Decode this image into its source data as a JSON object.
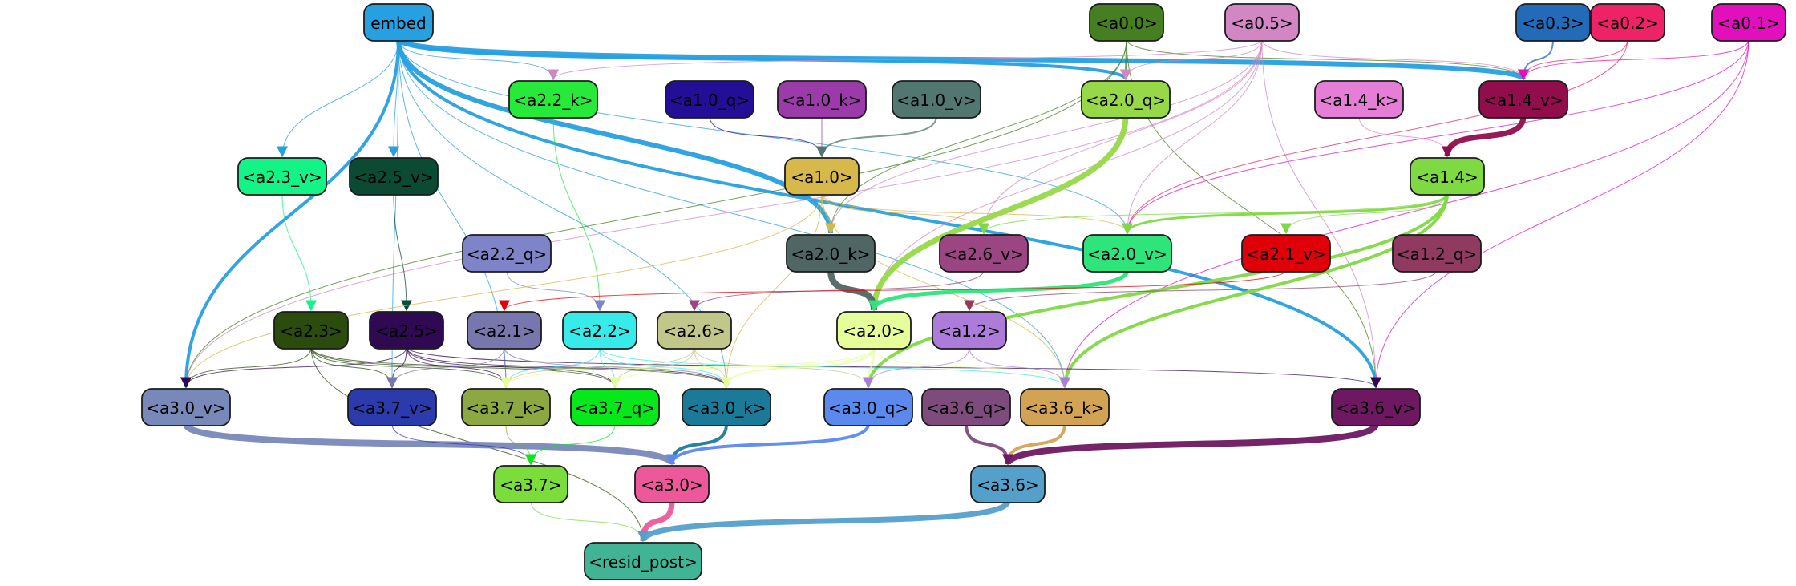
{
  "nodes": [
    {
      "id": "embed",
      "label": "embed",
      "fill": "#26a0e0",
      "text": "#000000"
    },
    {
      "id": "a0_0",
      "label": "<a0.0>",
      "fill": "#467f22",
      "text": "#000000"
    },
    {
      "id": "a0_5",
      "label": "<a0.5>",
      "fill": "#d286c4",
      "text": "#000000"
    },
    {
      "id": "a0_3",
      "label": "<a0.3>",
      "fill": "#236ab9",
      "text": "#000000"
    },
    {
      "id": "a0_2",
      "label": "<a0.2>",
      "fill": "#ee2267",
      "text": "#000000"
    },
    {
      "id": "a0_1",
      "label": "<a0.1>",
      "fill": "#e10fbc",
      "text": "#000000"
    },
    {
      "id": "a2_2_k",
      "label": "<a2.2_k>",
      "fill": "#27e93a",
      "text": "#000000"
    },
    {
      "id": "a1_0_q",
      "label": "<a1.0_q>",
      "fill": "#230f97",
      "text": "#000000"
    },
    {
      "id": "a1_0_k",
      "label": "<a1.0_k>",
      "fill": "#9b3aa9",
      "text": "#000000"
    },
    {
      "id": "a1_0_v",
      "label": "<a1.0_v>",
      "fill": "#527770",
      "text": "#000000"
    },
    {
      "id": "a2_0_q",
      "label": "<a2.0_q>",
      "fill": "#97d848",
      "text": "#000000"
    },
    {
      "id": "a1_4_k",
      "label": "<a1.4_k>",
      "fill": "#e47ed7",
      "text": "#000000"
    },
    {
      "id": "a1_4_v",
      "label": "<a1.4_v>",
      "fill": "#920d4c",
      "text": "#000000"
    },
    {
      "id": "a2_3_v",
      "label": "<a2.3_v>",
      "fill": "#14f386",
      "text": "#000000"
    },
    {
      "id": "a2_5_v",
      "label": "<a2.5_v>",
      "fill": "#0b4a33",
      "text": "#000000"
    },
    {
      "id": "a1_0",
      "label": "<a1.0>",
      "fill": "#d6b84b",
      "text": "#000000"
    },
    {
      "id": "a1_4",
      "label": "<a1.4>",
      "fill": "#7fd942",
      "text": "#000000"
    },
    {
      "id": "a2_2_q",
      "label": "<a2.2_q>",
      "fill": "#7f83c8",
      "text": "#000000"
    },
    {
      "id": "a2_0_k",
      "label": "<a2.0_k>",
      "fill": "#4f6664",
      "text": "#000000"
    },
    {
      "id": "a2_6_v",
      "label": "<a2.6_v>",
      "fill": "#9c4583",
      "text": "#000000"
    },
    {
      "id": "a2_0_v",
      "label": "<a2.0_v>",
      "fill": "#2de57a",
      "text": "#000000"
    },
    {
      "id": "a2_1_v",
      "label": "<a2.1_v>",
      "fill": "#e00007",
      "text": "#000000"
    },
    {
      "id": "a1_2_q",
      "label": "<a1.2_q>",
      "fill": "#903961",
      "text": "#000000"
    },
    {
      "id": "a2_3",
      "label": "<a2.3>",
      "fill": "#2b4c0c",
      "text": "#000000"
    },
    {
      "id": "a2_5",
      "label": "<a2.5>",
      "fill": "#2f0a53",
      "text": "#000000"
    },
    {
      "id": "a2_1",
      "label": "<a2.1>",
      "fill": "#7877ad",
      "text": "#000000"
    },
    {
      "id": "a2_2",
      "label": "<a2.2>",
      "fill": "#36ebea",
      "text": "#000000"
    },
    {
      "id": "a2_6",
      "label": "<a2.6>",
      "fill": "#c0c788",
      "text": "#000000"
    },
    {
      "id": "a2_0",
      "label": "<a2.0>",
      "fill": "#e6fe9a",
      "text": "#000000"
    },
    {
      "id": "a1_2",
      "label": "<a1.2>",
      "fill": "#ad7cda",
      "text": "#000000"
    },
    {
      "id": "a3_0_v",
      "label": "<a3.0_v>",
      "fill": "#7888b9",
      "text": "#000000"
    },
    {
      "id": "a3_7_v",
      "label": "<a3.7_v>",
      "fill": "#2b3bab",
      "text": "#000000"
    },
    {
      "id": "a3_7_k",
      "label": "<a3.7_k>",
      "fill": "#8ba843",
      "text": "#000000"
    },
    {
      "id": "a3_7_q",
      "label": "<a3.7_q>",
      "fill": "#06e81a",
      "text": "#000000"
    },
    {
      "id": "a3_0_k",
      "label": "<a3.0_k>",
      "fill": "#1c7a99",
      "text": "#000000"
    },
    {
      "id": "a3_0_q",
      "label": "<a3.0_q>",
      "fill": "#5b89ee",
      "text": "#000000"
    },
    {
      "id": "a3_6_q",
      "label": "<a3.6_q>",
      "fill": "#7e4b7d",
      "text": "#000000"
    },
    {
      "id": "a3_6_k",
      "label": "<a3.6_k>",
      "fill": "#d2a355",
      "text": "#000000"
    },
    {
      "id": "a3_6_v",
      "label": "<a3.6_v>",
      "fill": "#6e1862",
      "text": "#000000"
    },
    {
      "id": "a3_7",
      "label": "<a3.7>",
      "fill": "#7add3c",
      "text": "#000000"
    },
    {
      "id": "a3_0",
      "label": "<a3.0>",
      "fill": "#ec5899",
      "text": "#000000"
    },
    {
      "id": "a3_6",
      "label": "<a3.6>",
      "fill": "#54a0cb",
      "text": "#000000"
    },
    {
      "id": "resid_post",
      "label": "<resid_post>",
      "fill": "#40b494",
      "text": "#000000"
    }
  ],
  "edges": [
    {
      "from": "embed",
      "to": "a1_4_v",
      "color": "#26a0e0",
      "weight": 6
    },
    {
      "from": "embed",
      "to": "a2_0_k",
      "color": "#26a0e0",
      "weight": 6
    },
    {
      "from": "embed",
      "to": "a2_0_q",
      "color": "#26a0e0",
      "weight": 4
    },
    {
      "from": "embed",
      "to": "a3_0_v",
      "color": "#26a0e0",
      "weight": 4
    },
    {
      "from": "embed",
      "to": "a3_6_v",
      "color": "#26a0e0",
      "weight": 4
    },
    {
      "from": "embed",
      "to": "a2_2_k",
      "color": "#26a0e0",
      "weight": 1
    },
    {
      "from": "embed",
      "to": "a2_3_v",
      "color": "#26a0e0",
      "weight": 1
    },
    {
      "from": "embed",
      "to": "a2_5_v",
      "color": "#26a0e0",
      "weight": 1
    },
    {
      "from": "embed",
      "to": "a2_0_v",
      "color": "#26a0e0",
      "weight": 1
    },
    {
      "from": "embed",
      "to": "a3_7_v",
      "color": "#26a0e0",
      "weight": 1
    },
    {
      "from": "embed",
      "to": "a3_0_k",
      "color": "#26a0e0",
      "weight": 1
    },
    {
      "from": "embed",
      "to": "a3_6_k",
      "color": "#26a0e0",
      "weight": 1
    },
    {
      "from": "embed",
      "to": "a3_7_k",
      "color": "#26a0e0",
      "weight": 1
    },
    {
      "from": "a0_0",
      "to": "a2_0_q",
      "color": "#467f22",
      "weight": 2
    },
    {
      "from": "a0_0",
      "to": "a2_0_k",
      "color": "#467f22",
      "weight": 1
    },
    {
      "from": "a0_0",
      "to": "a1_4_v",
      "color": "#467f22",
      "weight": 1
    },
    {
      "from": "a0_0",
      "to": "a3_6_v",
      "color": "#467f22",
      "weight": 1
    },
    {
      "from": "a0_0",
      "to": "a3_0_v",
      "color": "#467f22",
      "weight": 1
    },
    {
      "from": "a0_5",
      "to": "a2_0_q",
      "color": "#d286c4",
      "weight": 1
    },
    {
      "from": "a0_5",
      "to": "a1_4_v",
      "color": "#d286c4",
      "weight": 1
    },
    {
      "from": "a0_5",
      "to": "a2_2_k",
      "color": "#d286c4",
      "weight": 1
    },
    {
      "from": "a0_5",
      "to": "a2_6_v",
      "color": "#d286c4",
      "weight": 1
    },
    {
      "from": "a0_5",
      "to": "a2_0_k",
      "color": "#d286c4",
      "weight": 1
    },
    {
      "from": "a0_5",
      "to": "a2_0_v",
      "color": "#d286c4",
      "weight": 1
    },
    {
      "from": "a0_5",
      "to": "a3_6_v",
      "color": "#d286c4",
      "weight": 1
    },
    {
      "from": "a0_5",
      "to": "a3_0_v",
      "color": "#d286c4",
      "weight": 1
    },
    {
      "from": "a0_5",
      "to": "a2_0",
      "color": "#d286c4",
      "weight": 1
    },
    {
      "from": "a0_3",
      "to": "a1_4_v",
      "color": "#236ab9",
      "weight": 2
    },
    {
      "from": "a0_2",
      "to": "a1_4_v",
      "color": "#ee2267",
      "weight": 1
    },
    {
      "from": "a0_2",
      "to": "a2_0_v",
      "color": "#ee2267",
      "weight": 1
    },
    {
      "from": "a0_1",
      "to": "a1_4_v",
      "color": "#e10fbc",
      "weight": 1
    },
    {
      "from": "a0_1",
      "to": "a3_6_v",
      "color": "#e10fbc",
      "weight": 1
    },
    {
      "from": "a0_1",
      "to": "a3_6_k",
      "color": "#e10fbc",
      "weight": 1
    },
    {
      "from": "a0_1",
      "to": "a2_0_v",
      "color": "#e10fbc",
      "weight": 1
    },
    {
      "from": "a1_0_q",
      "to": "a1_0",
      "color": "#230f97",
      "weight": 1
    },
    {
      "from": "a1_0_k",
      "to": "a1_0",
      "color": "#9b3aa9",
      "weight": 1
    },
    {
      "from": "a1_0_v",
      "to": "a1_0",
      "color": "#527770",
      "weight": 2
    },
    {
      "from": "a1_4_k",
      "to": "a1_4",
      "color": "#e47ed7",
      "weight": 1
    },
    {
      "from": "a1_4_v",
      "to": "a1_4",
      "color": "#920d4c",
      "weight": 7
    },
    {
      "from": "a2_2_k",
      "to": "a2_2",
      "color": "#27e93a",
      "weight": 1
    },
    {
      "from": "a2_3_v",
      "to": "a2_3",
      "color": "#14f386",
      "weight": 1
    },
    {
      "from": "a2_5_v",
      "to": "a2_5",
      "color": "#0b4a33",
      "weight": 1
    },
    {
      "from": "a2_2_q",
      "to": "a2_2",
      "color": "#7f83c8",
      "weight": 1
    },
    {
      "from": "a1_0",
      "to": "a2_0_k",
      "color": "#d6b84b",
      "weight": 1
    },
    {
      "from": "a1_0",
      "to": "a2_0_v",
      "color": "#d6b84b",
      "weight": 1
    },
    {
      "from": "a1_0",
      "to": "a2_6_v",
      "color": "#d6b84b",
      "weight": 1
    },
    {
      "from": "a1_0",
      "to": "a3_0_v",
      "color": "#d6b84b",
      "weight": 1
    },
    {
      "from": "a1_0",
      "to": "a3_0_k",
      "color": "#d6b84b",
      "weight": 1
    },
    {
      "from": "a1_0",
      "to": "a3_6_k",
      "color": "#d6b84b",
      "weight": 1
    },
    {
      "from": "a1_4",
      "to": "a2_0_v",
      "color": "#7fd942",
      "weight": 3
    },
    {
      "from": "a1_4",
      "to": "a3_6_k",
      "color": "#7fd942",
      "weight": 4
    },
    {
      "from": "a1_4",
      "to": "a3_0_q",
      "color": "#7fd942",
      "weight": 4
    },
    {
      "from": "a1_4",
      "to": "a2_6_v",
      "color": "#7fd942",
      "weight": 1
    },
    {
      "from": "a1_4",
      "to": "a2_1_v",
      "color": "#7fd942",
      "weight": 1
    },
    {
      "from": "a2_0_q",
      "to": "a2_0",
      "color": "#97d848",
      "weight": 7
    },
    {
      "from": "a2_0_k",
      "to": "a2_0",
      "color": "#4f6664",
      "weight": 8
    },
    {
      "from": "a2_0_v",
      "to": "a2_0",
      "color": "#2de57a",
      "weight": 5
    },
    {
      "from": "a2_6_v",
      "to": "a2_6",
      "color": "#9c4583",
      "weight": 1
    },
    {
      "from": "a2_1_v",
      "to": "a2_1",
      "color": "#e00007",
      "weight": 1
    },
    {
      "from": "a1_2_q",
      "to": "a1_2",
      "color": "#903961",
      "weight": 1
    },
    {
      "from": "a2_3",
      "to": "a3_0_v",
      "color": "#2b4c0c",
      "weight": 1
    },
    {
      "from": "a2_3",
      "to": "a3_7_v",
      "color": "#2b4c0c",
      "weight": 1
    },
    {
      "from": "a2_3",
      "to": "a3_7_k",
      "color": "#2b4c0c",
      "weight": 1
    },
    {
      "from": "a2_3",
      "to": "a3_7_q",
      "color": "#2b4c0c",
      "weight": 1
    },
    {
      "from": "a2_3",
      "to": "a3_0_k",
      "color": "#2b4c0c",
      "weight": 1
    },
    {
      "from": "a2_3",
      "to": "resid_post",
      "color": "#2b4c0c",
      "weight": 1
    },
    {
      "from": "a2_5",
      "to": "a3_0_v",
      "color": "#2f0a53",
      "weight": 1
    },
    {
      "from": "a2_5",
      "to": "a3_7_v",
      "color": "#2f0a53",
      "weight": 1
    },
    {
      "from": "a2_5",
      "to": "a3_7_k",
      "color": "#2f0a53",
      "weight": 1
    },
    {
      "from": "a2_5",
      "to": "a3_7_q",
      "color": "#2f0a53",
      "weight": 1
    },
    {
      "from": "a2_5",
      "to": "a3_0_k",
      "color": "#2f0a53",
      "weight": 1
    },
    {
      "from": "a2_5",
      "to": "a3_6_v",
      "color": "#2f0a53",
      "weight": 1
    },
    {
      "from": "a2_1",
      "to": "a3_7_v",
      "color": "#7877ad",
      "weight": 1
    },
    {
      "from": "a2_1",
      "to": "a3_7_k",
      "color": "#7877ad",
      "weight": 1
    },
    {
      "from": "a2_1",
      "to": "a3_0_k",
      "color": "#7877ad",
      "weight": 1
    },
    {
      "from": "a2_2",
      "to": "a3_7_q",
      "color": "#36ebea",
      "weight": 1
    },
    {
      "from": "a2_2",
      "to": "a3_0_k",
      "color": "#36ebea",
      "weight": 1
    },
    {
      "from": "a2_2",
      "to": "a3_7_k",
      "color": "#36ebea",
      "weight": 1
    },
    {
      "from": "a2_2",
      "to": "a3_6_k",
      "color": "#36ebea",
      "weight": 1
    },
    {
      "from": "a2_6",
      "to": "a3_0_k",
      "color": "#c0c788",
      "weight": 1
    },
    {
      "from": "a2_6",
      "to": "a3_7_q",
      "color": "#c0c788",
      "weight": 1
    },
    {
      "from": "a2_6",
      "to": "a3_0_q",
      "color": "#c0c788",
      "weight": 1
    },
    {
      "from": "a2_6",
      "to": "a3_7_k",
      "color": "#c0c788",
      "weight": 1
    },
    {
      "from": "a2_0",
      "to": "a3_0_k",
      "color": "#e6fe9a",
      "weight": 2
    },
    {
      "from": "a2_0",
      "to": "a3_0_q",
      "color": "#e6fe9a",
      "weight": 2
    },
    {
      "from": "a2_0",
      "to": "a3_7_q",
      "color": "#e6fe9a",
      "weight": 1
    },
    {
      "from": "a2_0",
      "to": "a3_6_k",
      "color": "#e6fe9a",
      "weight": 1
    },
    {
      "from": "a2_0",
      "to": "a3_7_k",
      "color": "#e6fe9a",
      "weight": 1
    },
    {
      "from": "a1_2",
      "to": "a3_6_k",
      "color": "#ad7cda",
      "weight": 1
    },
    {
      "from": "a1_2",
      "to": "a3_0_q",
      "color": "#ad7cda",
      "weight": 1
    },
    {
      "from": "a3_0_v",
      "to": "a3_0",
      "color": "#7888b9",
      "weight": 8
    },
    {
      "from": "a3_7_v",
      "to": "a3_7",
      "color": "#2b3bab",
      "weight": 1
    },
    {
      "from": "a3_7_k",
      "to": "a3_7",
      "color": "#8ba843",
      "weight": 1
    },
    {
      "from": "a3_7_q",
      "to": "a3_7",
      "color": "#06e81a",
      "weight": 1
    },
    {
      "from": "a3_0_k",
      "to": "a3_0",
      "color": "#1c7a99",
      "weight": 4
    },
    {
      "from": "a3_0_q",
      "to": "a3_0",
      "color": "#5b89ee",
      "weight": 4
    },
    {
      "from": "a3_6_q",
      "to": "a3_6",
      "color": "#7e4b7d",
      "weight": 4
    },
    {
      "from": "a3_6_k",
      "to": "a3_6",
      "color": "#d2a355",
      "weight": 4
    },
    {
      "from": "a3_6_v",
      "to": "a3_6",
      "color": "#6e1862",
      "weight": 8
    },
    {
      "from": "a3_7",
      "to": "resid_post",
      "color": "#7add3c",
      "weight": 1
    },
    {
      "from": "a3_0",
      "to": "resid_post",
      "color": "#ec5899",
      "weight": 7
    },
    {
      "from": "a3_6",
      "to": "resid_post",
      "color": "#54a0cb",
      "weight": 7
    }
  ]
}
